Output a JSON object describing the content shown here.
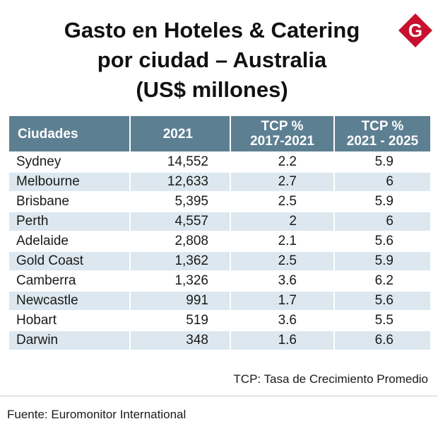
{
  "header": {
    "title_line1": "Gasto en Hoteles & Catering",
    "title_line2": "por ciudad – Australia",
    "title_line3": "(US$ millones)"
  },
  "brand": {
    "logo_letter": "G",
    "color": "#c8102e"
  },
  "chart_data": {
    "type": "table",
    "title": "Gasto en Hoteles & Catering por ciudad – Australia (US$ millones)",
    "columns": [
      {
        "line1": "Ciudades",
        "line2": ""
      },
      {
        "line1": "2021",
        "line2": ""
      },
      {
        "line1": "TCP %",
        "line2": "2017-2021"
      },
      {
        "line1": "TCP %",
        "line2": "2021 - 2025"
      }
    ],
    "rows": [
      [
        "Sydney",
        "14,552",
        "2.2",
        "5.9"
      ],
      [
        "Melbourne",
        "12,633",
        "2.7",
        "6"
      ],
      [
        "Brisbane",
        "5,395",
        "2.5",
        "5.9"
      ],
      [
        "Perth",
        "4,557",
        "2",
        "6"
      ],
      [
        "Adelaide",
        "2,808",
        "2.1",
        "5.6"
      ],
      [
        "Gold Coast",
        "1,362",
        "2.5",
        "5.9"
      ],
      [
        "Camberra",
        "1,326",
        "3.6",
        "6.2"
      ],
      [
        "Newcastle",
        "991",
        "1.7",
        "5.6"
      ],
      [
        "Hobart",
        "519",
        "3.6",
        "5.5"
      ],
      [
        "Darwin",
        "348",
        "1.6",
        "6.6"
      ]
    ],
    "header_color": "#5d7f92",
    "stripe_color": "#dce7ef"
  },
  "footer": {
    "note": "TCP: Tasa de Crecimiento Promedio",
    "source": "Fuente: Euromonitor International"
  }
}
